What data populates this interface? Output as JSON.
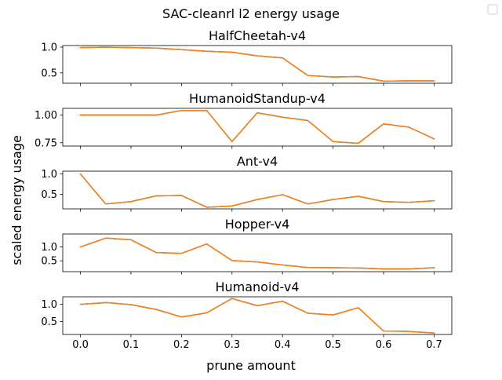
{
  "chart_data": {
    "type": "line",
    "title": "SAC-cleanrl l2 energy usage",
    "xlabel": "prune amount",
    "ylabel": "scaled energy usage",
    "x": [
      0.0,
      0.05,
      0.1,
      0.15,
      0.2,
      0.25,
      0.3,
      0.35,
      0.4,
      0.45,
      0.5,
      0.55,
      0.6,
      0.65,
      0.7
    ],
    "xlim": [
      -0.035,
      0.735
    ],
    "x_ticks": [
      "0.0",
      "0.1",
      "0.2",
      "0.3",
      "0.4",
      "0.5",
      "0.6",
      "0.7"
    ],
    "legend": {
      "placement": "top-right",
      "entries": []
    },
    "series_colors": [
      "#1f77b4",
      "#ff7f0e"
    ],
    "grid": false,
    "subplots": [
      {
        "title": "HalfCheetah-v4",
        "ylim": [
          0.3,
          1.03
        ],
        "y_ticks": [
          "0.5",
          "1.0"
        ],
        "y_tick_values": [
          0.5,
          1.0
        ],
        "series": [
          {
            "values": [
              0.99,
              1.0,
              0.99,
              0.98,
              0.95,
              0.92,
              0.9,
              0.83,
              0.79,
              0.45,
              0.42,
              0.43,
              0.34,
              0.345,
              0.345
            ]
          },
          {
            "values": [
              0.99,
              1.0,
              0.99,
              0.98,
              0.95,
              0.92,
              0.9,
              0.83,
              0.79,
              0.45,
              0.42,
              0.43,
              0.34,
              0.345,
              0.345
            ]
          }
        ]
      },
      {
        "title": "HumanoidStandup-v4",
        "ylim": [
          0.72,
          1.06
        ],
        "y_ticks": [
          "0.75",
          "1.00"
        ],
        "y_tick_values": [
          0.75,
          1.0
        ],
        "series": [
          {
            "values": [
              1.0,
              1.0,
              1.0,
              1.0,
              1.04,
              1.04,
              0.76,
              1.02,
              0.98,
              0.95,
              0.76,
              0.745,
              0.92,
              0.89,
              0.785
            ]
          },
          {
            "values": [
              1.0,
              1.0,
              1.0,
              1.0,
              1.04,
              1.04,
              0.76,
              1.02,
              0.98,
              0.95,
              0.76,
              0.745,
              0.92,
              0.89,
              0.785
            ]
          }
        ]
      },
      {
        "title": "Ant-v4",
        "ylim": [
          0.14,
          1.07
        ],
        "y_ticks": [
          "0.5",
          "1.0"
        ],
        "y_tick_values": [
          0.5,
          1.0
        ],
        "series": [
          {
            "values": [
              1.0,
              0.26,
              0.32,
              0.46,
              0.47,
              0.18,
              0.21,
              0.37,
              0.49,
              0.26,
              0.37,
              0.45,
              0.32,
              0.3,
              0.34
            ]
          },
          {
            "values": [
              1.0,
              0.26,
              0.32,
              0.46,
              0.47,
              0.18,
              0.21,
              0.37,
              0.49,
              0.26,
              0.37,
              0.45,
              0.32,
              0.3,
              0.34
            ]
          }
        ]
      },
      {
        "title": "Hopper-v4",
        "ylim": [
          0.11,
          1.47
        ],
        "y_ticks": [
          "0.5",
          "1.0"
        ],
        "y_tick_values": [
          0.5,
          1.0
        ],
        "series": [
          {
            "values": [
              1.0,
              1.32,
              1.26,
              0.8,
              0.77,
              1.11,
              0.51,
              0.46,
              0.35,
              0.26,
              0.25,
              0.24,
              0.21,
              0.21,
              0.25
            ]
          },
          {
            "values": [
              1.0,
              1.32,
              1.26,
              0.8,
              0.77,
              1.11,
              0.51,
              0.46,
              0.35,
              0.26,
              0.25,
              0.24,
              0.21,
              0.21,
              0.25
            ]
          }
        ]
      },
      {
        "title": "Humanoid-v4",
        "ylim": [
          0.12,
          1.22
        ],
        "y_ticks": [
          "0.5",
          "1.0"
        ],
        "y_tick_values": [
          0.5,
          1.0
        ],
        "series": [
          {
            "values": [
              1.0,
              1.05,
              0.99,
              0.85,
              0.63,
              0.75,
              1.17,
              0.96,
              1.09,
              0.74,
              0.69,
              0.9,
              0.22,
              0.21,
              0.16
            ]
          },
          {
            "values": [
              1.0,
              1.05,
              0.99,
              0.85,
              0.63,
              0.75,
              1.17,
              0.96,
              1.09,
              0.74,
              0.69,
              0.9,
              0.22,
              0.21,
              0.16
            ]
          }
        ]
      }
    ]
  }
}
